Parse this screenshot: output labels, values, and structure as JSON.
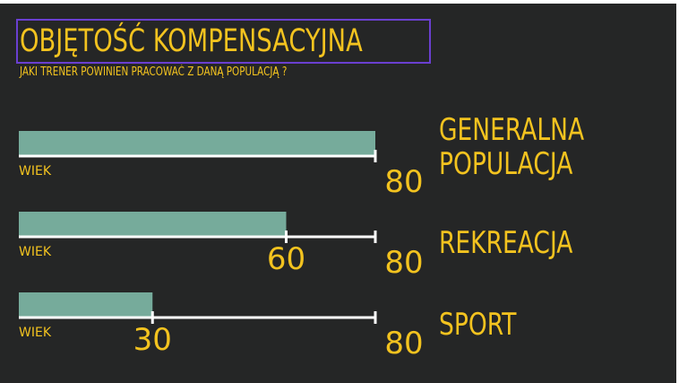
{
  "slide": {
    "title": "OBJĘTOŚĆ KOMPENSACYJNA",
    "subtitle": "JAKI TRENER POWINIEN PRACOWAĆ Z DANĄ POPULACJĄ ?",
    "background": "#252626",
    "accent": "#f3c31f",
    "title_border": "#6a3fd0"
  },
  "chart_data": {
    "type": "bar",
    "orientation": "horizontal",
    "categories": [
      "GENERALNA POPULACJA",
      "REKREACJA",
      "SPORT"
    ],
    "category_lines": [
      [
        "GENERALNA",
        "POPULACJA"
      ],
      [
        "REKREACJA"
      ],
      [
        "SPORT"
      ]
    ],
    "values": [
      80,
      60,
      30
    ],
    "max": [
      80,
      80,
      80
    ],
    "axis_label": "WIEK",
    "bar_color": "#76ab9b",
    "axis_color": "#ffffff"
  }
}
